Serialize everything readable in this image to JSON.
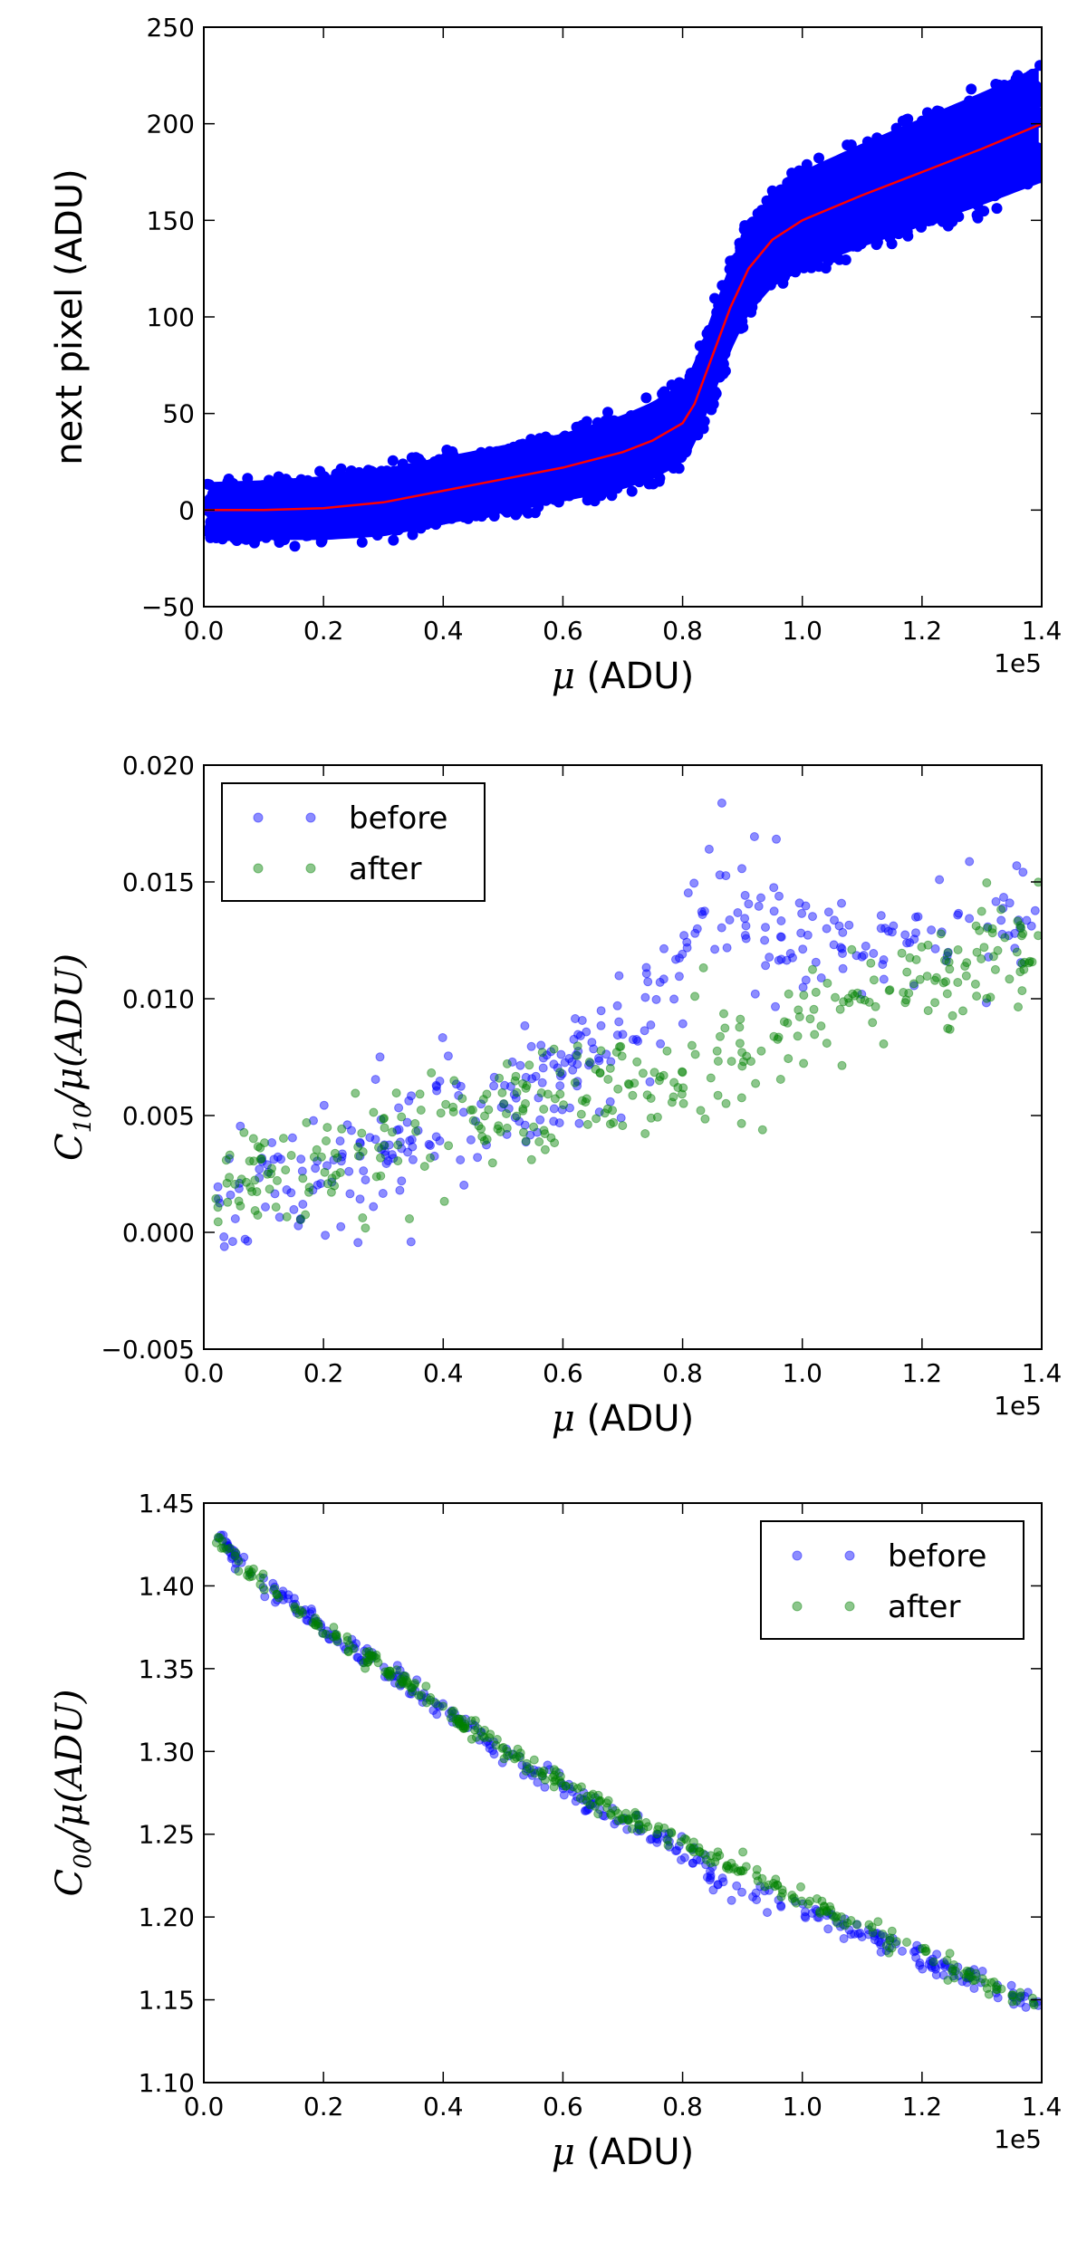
{
  "chart_data": [
    {
      "type": "scatter",
      "id": "panel1",
      "title": "",
      "xlabel_math": "μ",
      "xlabel_text": " (ADU)",
      "ylabel": "next pixel (ADU)",
      "xlim": [
        0,
        140000
      ],
      "ylim": [
        -50,
        250
      ],
      "x_ticks": [
        0,
        20000,
        40000,
        60000,
        80000,
        100000,
        120000,
        140000
      ],
      "x_tick_labels": [
        "0.0",
        "0.2",
        "0.4",
        "0.6",
        "0.8",
        "1.0",
        "1.2",
        "1.4"
      ],
      "x_offset_label": "1e5",
      "y_ticks": [
        -50,
        0,
        50,
        100,
        150,
        200,
        250
      ],
      "y_tick_labels": [
        "−50",
        "0",
        "50",
        "100",
        "150",
        "200",
        "250"
      ],
      "scatter_band": {
        "name": "data",
        "color": "#0000ff",
        "center": [
          [
            0,
            0
          ],
          [
            10000,
            0
          ],
          [
            20000,
            1
          ],
          [
            30000,
            4
          ],
          [
            40000,
            10
          ],
          [
            50000,
            16
          ],
          [
            60000,
            22
          ],
          [
            70000,
            30
          ],
          [
            75000,
            36
          ],
          [
            80000,
            45
          ],
          [
            82000,
            55
          ],
          [
            85000,
            80
          ],
          [
            88000,
            105
          ],
          [
            91000,
            125
          ],
          [
            95000,
            140
          ],
          [
            100000,
            150
          ],
          [
            110000,
            163
          ],
          [
            120000,
            175
          ],
          [
            130000,
            187
          ],
          [
            140000,
            200
          ]
        ],
        "half_width": [
          [
            0,
            18
          ],
          [
            30000,
            22
          ],
          [
            60000,
            22
          ],
          [
            80000,
            26
          ],
          [
            85000,
            28
          ],
          [
            100000,
            32
          ],
          [
            140000,
            38
          ]
        ]
      },
      "fit_line": {
        "color": "#ff0000",
        "points": [
          [
            0,
            0
          ],
          [
            10000,
            0
          ],
          [
            20000,
            1
          ],
          [
            30000,
            4
          ],
          [
            40000,
            10
          ],
          [
            50000,
            16
          ],
          [
            60000,
            22
          ],
          [
            70000,
            30
          ],
          [
            75000,
            36
          ],
          [
            80000,
            45
          ],
          [
            82000,
            55
          ],
          [
            85000,
            80
          ],
          [
            88000,
            105
          ],
          [
            91000,
            125
          ],
          [
            95000,
            140
          ],
          [
            100000,
            150
          ],
          [
            110000,
            163
          ],
          [
            120000,
            175
          ],
          [
            130000,
            187
          ],
          [
            140000,
            200
          ]
        ]
      }
    },
    {
      "type": "scatter",
      "id": "panel2",
      "xlabel_math": "μ",
      "xlabel_text": " (ADU)",
      "ylabel_main": "C",
      "ylabel_sub": "10",
      "ylabel_rest": "/μ(ADU)",
      "xlim": [
        0,
        140000
      ],
      "ylim": [
        -0.005,
        0.02
      ],
      "x_ticks": [
        0,
        20000,
        40000,
        60000,
        80000,
        100000,
        120000,
        140000
      ],
      "x_tick_labels": [
        "0.0",
        "0.2",
        "0.4",
        "0.6",
        "0.8",
        "1.0",
        "1.2",
        "1.4"
      ],
      "x_offset_label": "1e5",
      "y_ticks": [
        -0.005,
        0.0,
        0.005,
        0.01,
        0.015,
        0.02
      ],
      "y_tick_labels": [
        "−0.005",
        "0.000",
        "0.005",
        "0.010",
        "0.015",
        "0.020"
      ],
      "legend": {
        "position": "top-left",
        "entries": [
          "before",
          "after"
        ]
      },
      "series": [
        {
          "name": "before",
          "color": "#0000ff",
          "center": [
            [
              2000,
              0.002
            ],
            [
              20000,
              0.0025
            ],
            [
              40000,
              0.005
            ],
            [
              60000,
              0.007
            ],
            [
              70000,
              0.0085
            ],
            [
              78000,
              0.01
            ],
            [
              82000,
              0.013
            ],
            [
              86000,
              0.015
            ],
            [
              90000,
              0.014
            ],
            [
              100000,
              0.012
            ],
            [
              120000,
              0.013
            ],
            [
              140000,
              0.014
            ]
          ],
          "spread": 0.0014
        },
        {
          "name": "after",
          "color": "#008000",
          "center": [
            [
              2000,
              0.002
            ],
            [
              20000,
              0.0025
            ],
            [
              40000,
              0.0045
            ],
            [
              60000,
              0.0055
            ],
            [
              80000,
              0.0068
            ],
            [
              90000,
              0.0075
            ],
            [
              100000,
              0.009
            ],
            [
              120000,
              0.011
            ],
            [
              140000,
              0.0125
            ]
          ],
          "spread": 0.0012
        }
      ]
    },
    {
      "type": "scatter",
      "id": "panel3",
      "xlabel_math": "μ",
      "xlabel_text": " (ADU)",
      "ylabel_main": "C",
      "ylabel_sub": "00",
      "ylabel_rest": "/μ(ADU)",
      "xlim": [
        0,
        140000
      ],
      "ylim": [
        1.1,
        1.45
      ],
      "x_ticks": [
        0,
        20000,
        40000,
        60000,
        80000,
        100000,
        120000,
        140000
      ],
      "x_tick_labels": [
        "0.0",
        "0.2",
        "0.4",
        "0.6",
        "0.8",
        "1.0",
        "1.2",
        "1.4"
      ],
      "x_offset_label": "1e5",
      "y_ticks": [
        1.1,
        1.15,
        1.2,
        1.25,
        1.3,
        1.35,
        1.4,
        1.45
      ],
      "y_tick_labels": [
        "1.10",
        "1.15",
        "1.20",
        "1.25",
        "1.30",
        "1.35",
        "1.40",
        "1.45"
      ],
      "legend": {
        "position": "top-right",
        "entries": [
          "before",
          "after"
        ]
      },
      "series": [
        {
          "name": "before",
          "color": "#0000ff",
          "center": [
            [
              2000,
              1.43
            ],
            [
              10000,
              1.4
            ],
            [
              20000,
              1.375
            ],
            [
              30000,
              1.35
            ],
            [
              40000,
              1.325
            ],
            [
              50000,
              1.3
            ],
            [
              60000,
              1.278
            ],
            [
              70000,
              1.258
            ],
            [
              80000,
              1.24
            ],
            [
              85000,
              1.225
            ],
            [
              90000,
              1.215
            ],
            [
              100000,
              1.205
            ],
            [
              110000,
              1.19
            ],
            [
              120000,
              1.175
            ],
            [
              130000,
              1.16
            ],
            [
              140000,
              1.145
            ]
          ],
          "spread": 0.0035
        },
        {
          "name": "after",
          "color": "#008000",
          "center": [
            [
              2000,
              1.43
            ],
            [
              10000,
              1.4
            ],
            [
              20000,
              1.375
            ],
            [
              30000,
              1.35
            ],
            [
              40000,
              1.325
            ],
            [
              50000,
              1.3
            ],
            [
              60000,
              1.28
            ],
            [
              70000,
              1.262
            ],
            [
              80000,
              1.245
            ],
            [
              90000,
              1.228
            ],
            [
              100000,
              1.21
            ],
            [
              110000,
              1.195
            ],
            [
              120000,
              1.178
            ],
            [
              130000,
              1.162
            ],
            [
              140000,
              1.147
            ]
          ],
          "spread": 0.003
        }
      ]
    }
  ]
}
